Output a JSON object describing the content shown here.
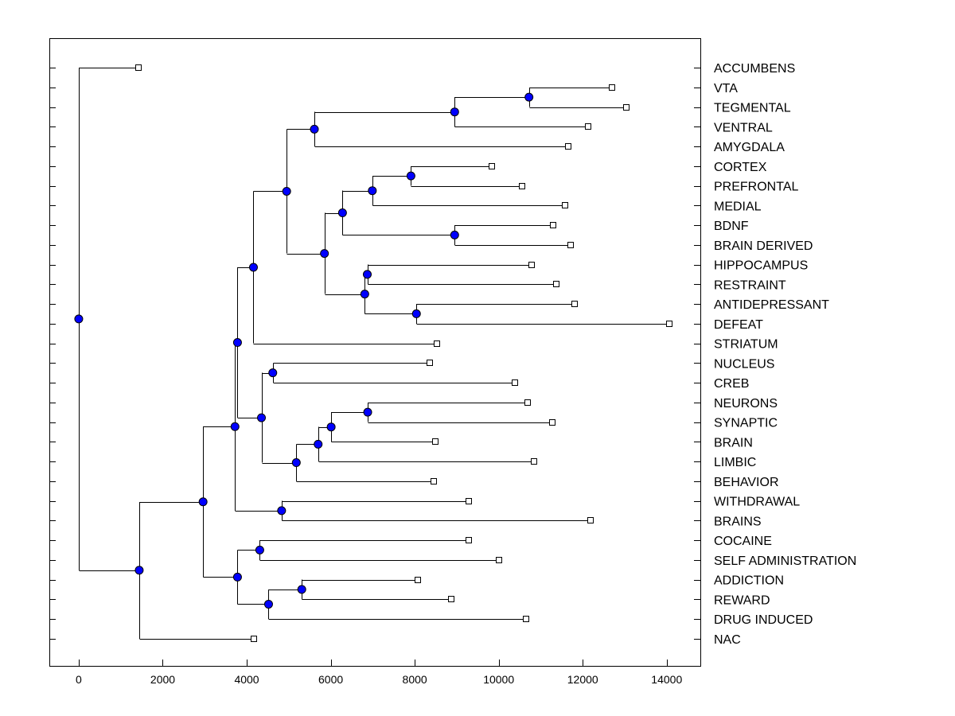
{
  "chart_data": {
    "type": "dendrogram",
    "orientation": "left-to-right",
    "xlim": [
      -700,
      14800
    ],
    "xticks": [
      0,
      2000,
      4000,
      6000,
      8000,
      10000,
      12000,
      14000
    ],
    "colors": {
      "node": "#0000ff",
      "line": "#000000",
      "leaf": "#ffffff"
    },
    "leaves": [
      {
        "id": "accumbens",
        "label": "ACCUMBENS",
        "x": 1430
      },
      {
        "id": "vta",
        "label": "VTA",
        "x": 12700
      },
      {
        "id": "tegmental",
        "label": "TEGMENTAL",
        "x": 13030
      },
      {
        "id": "ventral",
        "label": "VENTRAL",
        "x": 12130
      },
      {
        "id": "amygdala",
        "label": "AMYGDALA",
        "x": 11660
      },
      {
        "id": "cortex",
        "label": "CORTEX",
        "x": 9830
      },
      {
        "id": "prefrontal",
        "label": "PREFRONTAL",
        "x": 10560
      },
      {
        "id": "medial",
        "label": "MEDIAL",
        "x": 11580
      },
      {
        "id": "bdnf",
        "label": "BDNF",
        "x": 11290
      },
      {
        "id": "brain_derived",
        "label": "BRAIN DERIVED",
        "x": 11710
      },
      {
        "id": "hippocampus",
        "label": "HIPPOCAMPUS",
        "x": 10790
      },
      {
        "id": "restraint",
        "label": "RESTRAINT",
        "x": 11370
      },
      {
        "id": "antidepressant",
        "label": "ANTIDEPRESSANT",
        "x": 11800
      },
      {
        "id": "defeat",
        "label": "DEFEAT",
        "x": 14070
      },
      {
        "id": "striatum",
        "label": "STRIATUM",
        "x": 8530
      },
      {
        "id": "nucleus",
        "label": "NUCLEUS",
        "x": 8350
      },
      {
        "id": "creb",
        "label": "CREB",
        "x": 10380
      },
      {
        "id": "neurons",
        "label": "NEURONS",
        "x": 10680
      },
      {
        "id": "synaptic",
        "label": "SYNAPTIC",
        "x": 11280
      },
      {
        "id": "brain",
        "label": "BRAIN",
        "x": 8490
      },
      {
        "id": "limbic",
        "label": "LIMBIC",
        "x": 10840
      },
      {
        "id": "behavior",
        "label": "BEHAVIOR",
        "x": 8450
      },
      {
        "id": "withdrawal",
        "label": "WITHDRAWAL",
        "x": 9290
      },
      {
        "id": "brains",
        "label": "BRAINS",
        "x": 12180
      },
      {
        "id": "cocaine",
        "label": "COCAINE",
        "x": 9290
      },
      {
        "id": "self_administration",
        "label": "SELF ADMINISTRATION",
        "x": 10010
      },
      {
        "id": "addiction",
        "label": "ADDICTION",
        "x": 8070
      },
      {
        "id": "reward",
        "label": "REWARD",
        "x": 8870
      },
      {
        "id": "drug_induced",
        "label": "DRUG INDUCED",
        "x": 10650
      },
      {
        "id": "nac",
        "label": "NAC",
        "x": 4170
      }
    ],
    "nodes": [
      {
        "id": "n1",
        "x": 10720,
        "children": [
          "vta",
          "tegmental"
        ]
      },
      {
        "id": "n2",
        "x": 8950,
        "children": [
          "n1",
          "ventral"
        ]
      },
      {
        "id": "n3",
        "x": 5610,
        "children": [
          "n2",
          "amygdala"
        ]
      },
      {
        "id": "n4",
        "x": 7910,
        "children": [
          "cortex",
          "prefrontal"
        ]
      },
      {
        "id": "n5",
        "x": 6990,
        "children": [
          "n4",
          "medial"
        ]
      },
      {
        "id": "n6",
        "x": 8950,
        "children": [
          "bdnf",
          "brain_derived"
        ]
      },
      {
        "id": "n7",
        "x": 6280,
        "children": [
          "n5",
          "n6"
        ]
      },
      {
        "id": "n8",
        "x": 6870,
        "children": [
          "hippocampus",
          "restraint"
        ]
      },
      {
        "id": "n9",
        "x": 8040,
        "children": [
          "antidepressant",
          "defeat"
        ]
      },
      {
        "id": "n10",
        "x": 6810,
        "children": [
          "n8",
          "n9"
        ]
      },
      {
        "id": "n11",
        "x": 5850,
        "children": [
          "n7",
          "n10"
        ]
      },
      {
        "id": "n12",
        "x": 4950,
        "children": [
          "n3",
          "n11"
        ]
      },
      {
        "id": "n13",
        "x": 4160,
        "children": [
          "n12",
          "striatum"
        ]
      },
      {
        "id": "n14",
        "x": 4620,
        "children": [
          "nucleus",
          "creb"
        ]
      },
      {
        "id": "n15",
        "x": 6880,
        "children": [
          "neurons",
          "synaptic"
        ]
      },
      {
        "id": "n16",
        "x": 6010,
        "children": [
          "n15",
          "brain"
        ]
      },
      {
        "id": "n17",
        "x": 5700,
        "children": [
          "n16",
          "limbic"
        ]
      },
      {
        "id": "n18",
        "x": 5180,
        "children": [
          "n17",
          "behavior"
        ]
      },
      {
        "id": "n19",
        "x": 4350,
        "children": [
          "n14",
          "n18"
        ]
      },
      {
        "id": "n20",
        "x": 3780,
        "children": [
          "n13",
          "n19"
        ]
      },
      {
        "id": "n21",
        "x": 4830,
        "children": [
          "withdrawal",
          "brains"
        ]
      },
      {
        "id": "n22",
        "x": 3720,
        "children": [
          "n20",
          "n21"
        ]
      },
      {
        "id": "n23",
        "x": 4310,
        "children": [
          "cocaine",
          "self_administration"
        ]
      },
      {
        "id": "n24",
        "x": 5310,
        "children": [
          "addiction",
          "reward"
        ]
      },
      {
        "id": "n25",
        "x": 4520,
        "children": [
          "n24",
          "drug_induced"
        ]
      },
      {
        "id": "n26",
        "x": 3780,
        "children": [
          "n23",
          "n25"
        ]
      },
      {
        "id": "n27",
        "x": 2960,
        "children": [
          "n22",
          "n26"
        ]
      },
      {
        "id": "n28",
        "x": 1440,
        "children": [
          "n27",
          "nac"
        ]
      },
      {
        "id": "root",
        "x": 0,
        "children": [
          "accumbens",
          "n28"
        ]
      }
    ]
  }
}
